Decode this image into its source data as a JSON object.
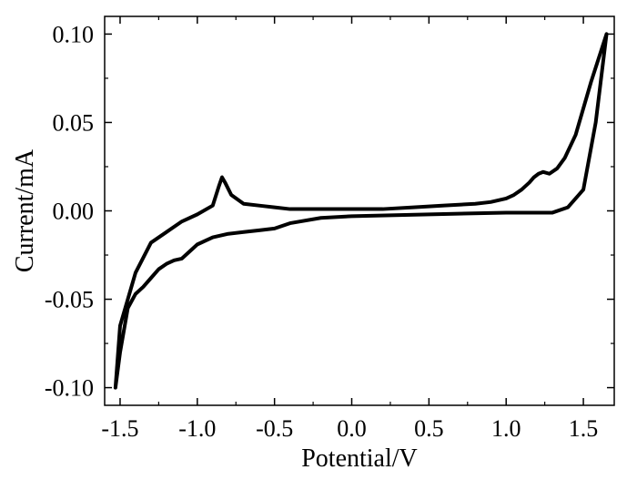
{
  "chart_data": {
    "type": "line",
    "title": "",
    "xlabel": "Potential/V",
    "ylabel": "Current/mA",
    "xlim": [
      -1.6,
      1.7
    ],
    "ylim": [
      -0.11,
      0.11
    ],
    "x_ticks": [
      -1.5,
      -1.0,
      -0.5,
      0.0,
      0.5,
      1.0,
      1.5
    ],
    "x_tick_labels": [
      "-1.5",
      "-1.0",
      "-0.5",
      "0.0",
      "0.5",
      "1.0",
      "1.5"
    ],
    "y_ticks": [
      -0.1,
      -0.05,
      0.0,
      0.05,
      0.1
    ],
    "y_tick_labels": [
      "-0.10",
      "-0.05",
      "0.00",
      "0.05",
      "0.10"
    ],
    "grid": false,
    "legend": "none",
    "line_color": "#000000",
    "series": [
      {
        "x": [
          1.65,
          1.55,
          1.45,
          1.38,
          1.33,
          1.28,
          1.24,
          1.21,
          1.18,
          1.15,
          1.1,
          1.05,
          1.0,
          0.9,
          0.8,
          0.6,
          0.4,
          0.2,
          0.0,
          -0.2,
          -0.4,
          -0.5,
          -0.6,
          -0.7,
          -0.78,
          -0.82,
          -0.84,
          -0.86,
          -0.9,
          -1.0,
          -1.1,
          -1.2,
          -1.3,
          -1.4,
          -1.5,
          -1.53,
          -1.5,
          -1.45,
          -1.4,
          -1.35,
          -1.3,
          -1.25,
          -1.2,
          -1.15,
          -1.1,
          -1.05,
          -1.0,
          -0.9,
          -0.8,
          -0.7,
          -0.6,
          -0.5,
          -0.4,
          -0.2,
          0.0,
          0.5,
          1.0,
          1.2,
          1.3,
          1.4,
          1.5,
          1.58,
          1.65
        ],
        "y": [
          0.1,
          0.073,
          0.043,
          0.03,
          0.024,
          0.021,
          0.022,
          0.021,
          0.019,
          0.016,
          0.012,
          0.009,
          0.007,
          0.005,
          0.004,
          0.003,
          0.002,
          0.001,
          0.001,
          0.001,
          0.001,
          0.002,
          0.003,
          0.004,
          0.009,
          0.016,
          0.019,
          0.014,
          0.003,
          -0.002,
          -0.006,
          -0.012,
          -0.018,
          -0.035,
          -0.065,
          -0.1,
          -0.08,
          -0.055,
          -0.047,
          -0.043,
          -0.038,
          -0.033,
          -0.03,
          -0.028,
          -0.027,
          -0.023,
          -0.019,
          -0.015,
          -0.013,
          -0.012,
          -0.011,
          -0.01,
          -0.007,
          -0.004,
          -0.003,
          -0.002,
          -0.001,
          -0.001,
          -0.001,
          0.002,
          0.012,
          0.05,
          0.1
        ]
      }
    ]
  }
}
